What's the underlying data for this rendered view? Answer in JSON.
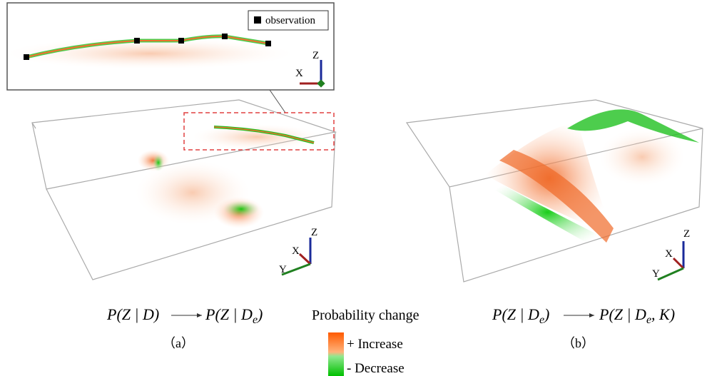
{
  "inset": {
    "legend": "observation",
    "axes": {
      "z": "Z",
      "x": "X"
    }
  },
  "panel_a": {
    "axes": {
      "z": "Z",
      "x": "X",
      "y": "Y"
    },
    "from": "P(Z | D)",
    "to": {
      "text": "P(Z | D",
      "sub": "e",
      "end": ")"
    },
    "label": "（a）"
  },
  "panel_b": {
    "axes": {
      "z": "Z",
      "x": "X",
      "y": "Y"
    },
    "from": {
      "text": "P(Z | D",
      "sub": "e",
      "end": ")"
    },
    "to": {
      "text": "P(Z | D",
      "sub": "e",
      "end": ", K)"
    },
    "label": "（b）"
  },
  "legend": {
    "title": "Probability change",
    "increase": "+ Increase",
    "decrease": "- Decrease"
  }
}
